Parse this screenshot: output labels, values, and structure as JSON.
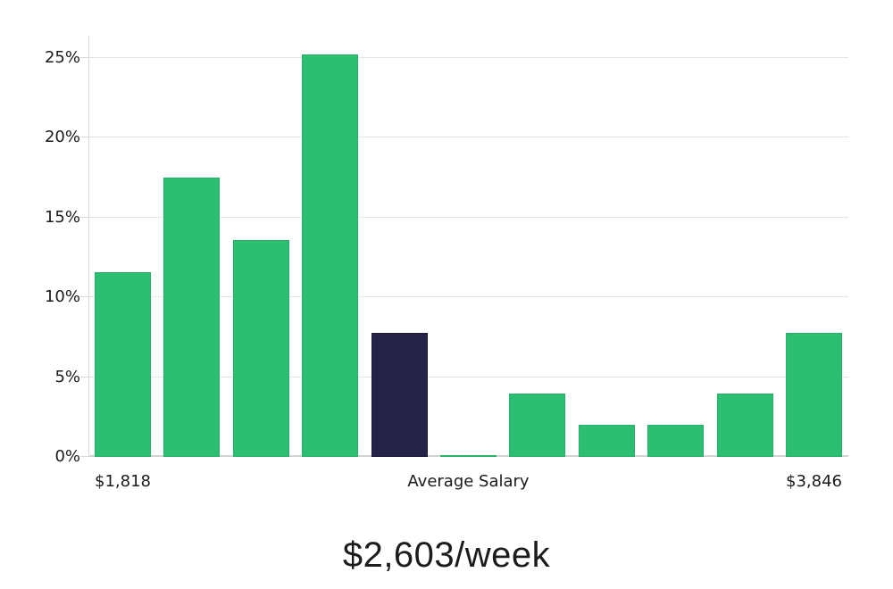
{
  "chart_data": {
    "type": "bar",
    "title": "$2,603/week",
    "values": [
      11.6,
      17.5,
      13.6,
      25.2,
      7.8,
      0.1,
      4.0,
      2.0,
      2.0,
      4.0,
      7.8
    ],
    "highlight_index": 4,
    "x_tick_labels": [
      {
        "text": "$1,818",
        "bar_index": 0
      },
      {
        "text": "Average Salary",
        "bar_index": 5
      },
      {
        "text": "$3,846",
        "bar_index": 10
      }
    ],
    "y_ticks": [
      {
        "value": 0,
        "label": "0%"
      },
      {
        "value": 5,
        "label": "5%"
      },
      {
        "value": 10,
        "label": "10%"
      },
      {
        "value": 15,
        "label": "15%"
      },
      {
        "value": 20,
        "label": "20%"
      },
      {
        "value": 25,
        "label": "25%"
      }
    ],
    "ylim": [
      0,
      26.4
    ],
    "grid": true,
    "legend": "none",
    "xlabel": "",
    "ylabel": "",
    "colors": {
      "bar": "#2cbe71",
      "bar_edge": "#27b069",
      "highlight": "#262348",
      "highlight_edge": "#1d1a39",
      "grid": "#e4e4e4",
      "axis": "#d9d9d9",
      "text": "#1b1b1b",
      "background": "#ffffff"
    }
  }
}
